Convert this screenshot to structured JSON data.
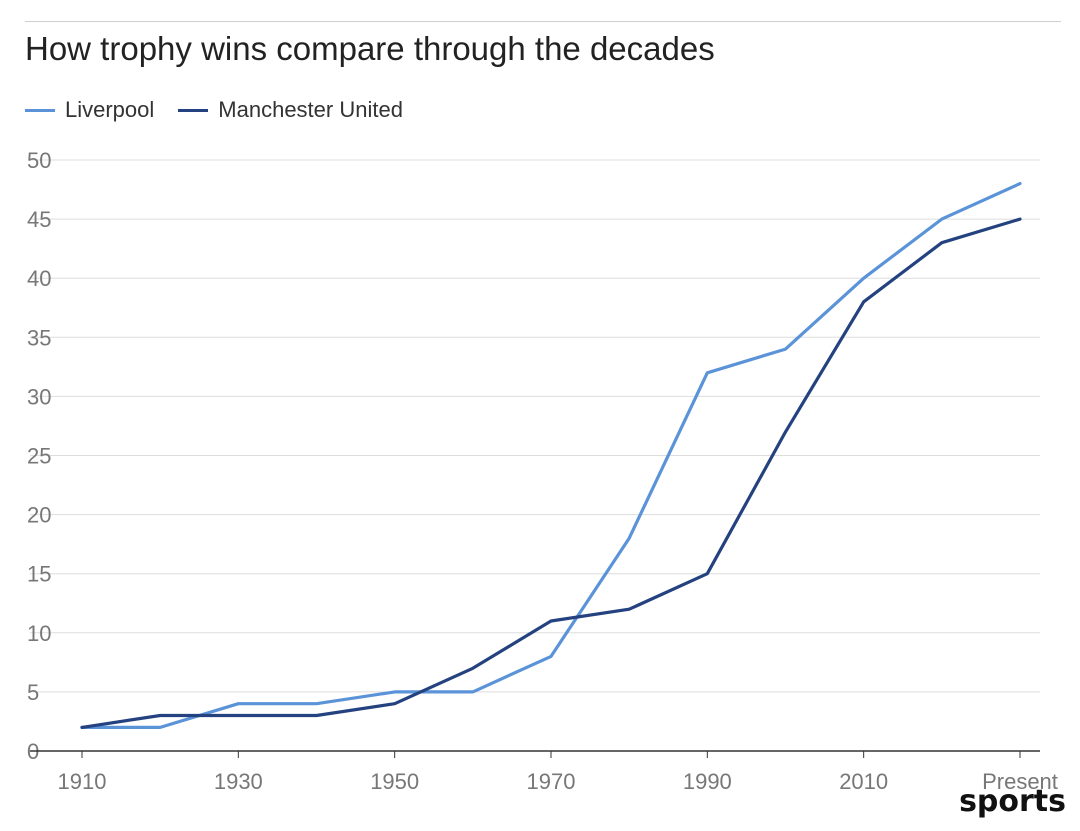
{
  "chart_data": {
    "type": "line",
    "title": "How trophy wins compare through the decades",
    "xlabel": "",
    "ylabel": "",
    "categories": [
      "1910",
      "1920",
      "1930",
      "1940",
      "1950",
      "1960",
      "1970",
      "1980",
      "1990",
      "2000",
      "2010",
      "2020",
      "Present"
    ],
    "x_tick_labels": [
      "1910",
      "1930",
      "1950",
      "1970",
      "1990",
      "2010",
      "Present"
    ],
    "y_ticks": [
      0,
      5,
      10,
      15,
      20,
      25,
      30,
      35,
      40,
      45,
      50
    ],
    "ylim": [
      0,
      50
    ],
    "grid": true,
    "legend_position": "top-left",
    "series": [
      {
        "name": "Liverpool",
        "color": "#5b93d8",
        "values": [
          2,
          2,
          4,
          4,
          5,
          5,
          8,
          18,
          32,
          34,
          40,
          45,
          48
        ]
      },
      {
        "name": "Manchester United",
        "color": "#24427f",
        "values": [
          2,
          3,
          3,
          3,
          4,
          7,
          11,
          12,
          15,
          27,
          38,
          43,
          45
        ]
      }
    ]
  },
  "watermark": "sports"
}
